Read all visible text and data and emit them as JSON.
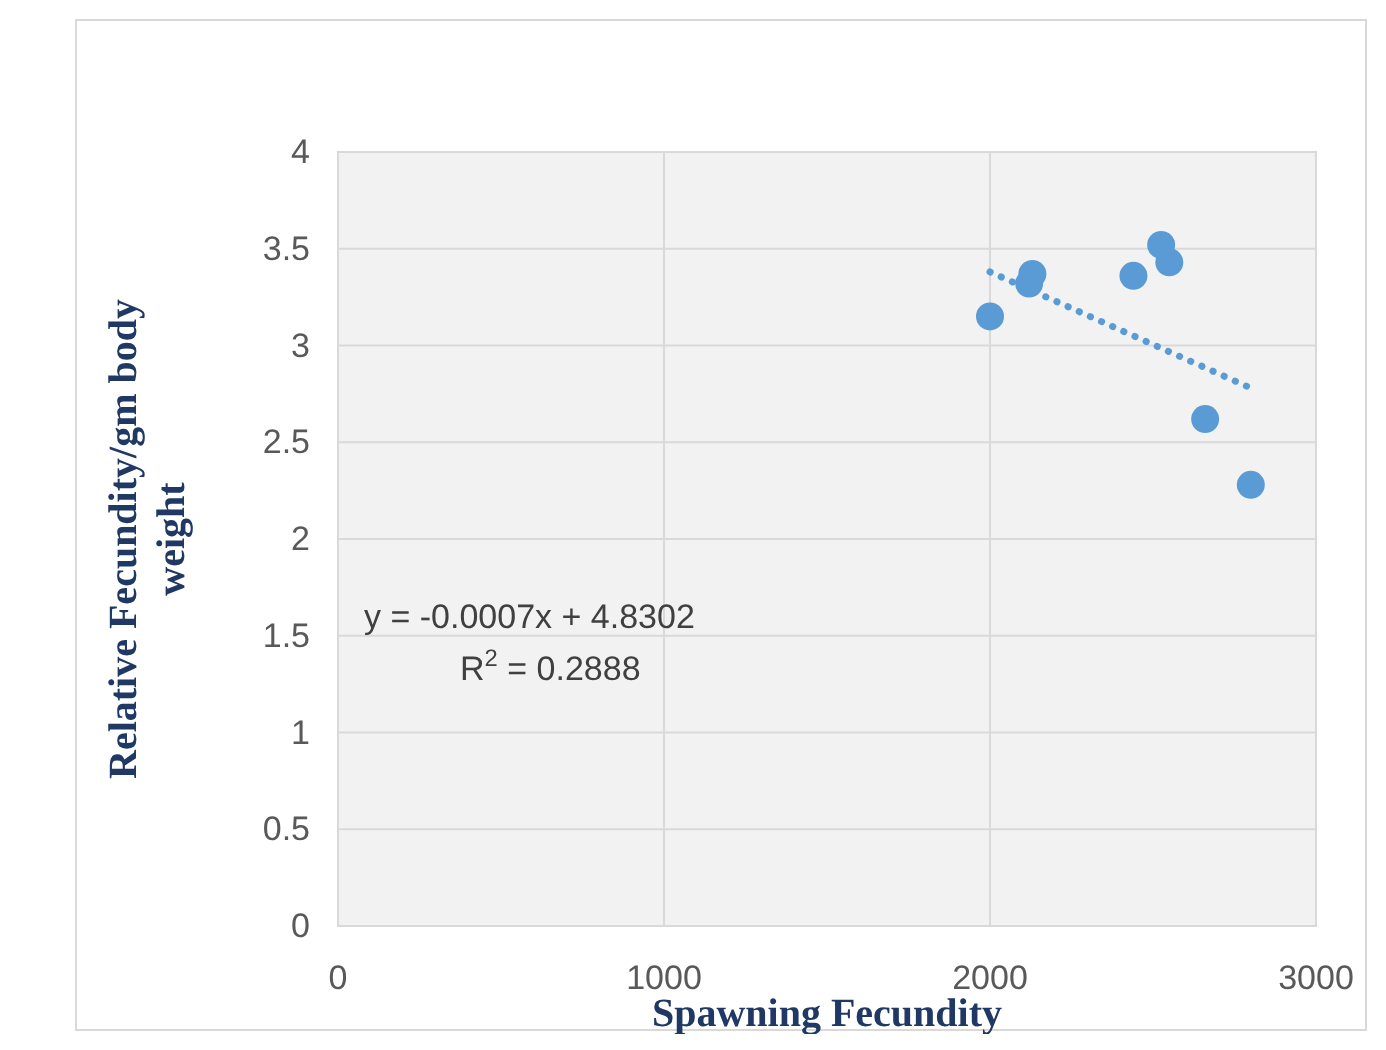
{
  "chart_data": {
    "type": "scatter",
    "xlabel": "Spawning Fecundity",
    "ylabel": "Relative Fecundity/gm body weight",
    "xlim": [
      0,
      3000
    ],
    "xticks": [
      0,
      1000,
      2000,
      3000
    ],
    "ylim": [
      0,
      4
    ],
    "yticks": [
      0,
      0.5,
      1,
      1.5,
      2,
      2.5,
      3,
      3.5,
      4
    ],
    "grid": true,
    "x": [
      2000,
      2130,
      2120,
      2440,
      2525,
      2550,
      2660,
      2800
    ],
    "series": [
      {
        "color": "#5b9bd5",
        "marker": "circle",
        "values": [
          3.15,
          3.37,
          3.32,
          3.36,
          3.52,
          3.43,
          2.62,
          2.28
        ]
      },
      {
        "type": "line",
        "color": "#5b9bd5",
        "marker": "none",
        "line_style": "dotted",
        "x": [
          2000,
          2800
        ],
        "values": [
          3.38,
          2.78
        ]
      }
    ],
    "annotations": [
      "y = -0.0007x + 4.8302",
      "R$^{2}$ = 0.2888"
    ]
  }
}
